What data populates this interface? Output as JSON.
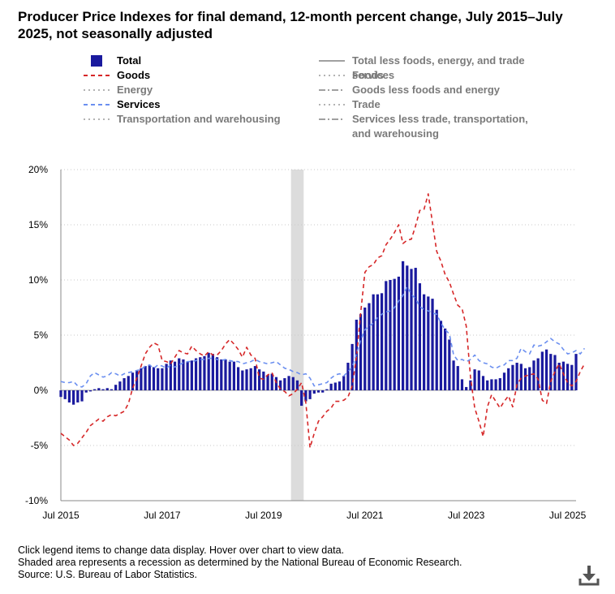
{
  "title": "Producer Price Indexes for final demand, 12-month percent change, July 2015–July 2025, not seasonally adjusted",
  "legend": [
    {
      "label": "Total",
      "style": "bar",
      "color": "#1a1a9e",
      "active": true
    },
    {
      "label": "Goods",
      "style": "dashed",
      "color": "#d62728",
      "active": true
    },
    {
      "label": "Energy",
      "style": "dotted",
      "color": "#9a9a9a",
      "active": false
    },
    {
      "label": "Services",
      "style": "dashed",
      "color": "#6b8ff0",
      "active": true
    },
    {
      "label": "Transportation and warehousing",
      "style": "dotted",
      "color": "#9a9a9a",
      "active": false
    },
    {
      "label": "Total less foods, energy, and trade services",
      "style": "solid",
      "color": "#808080",
      "active": false
    },
    {
      "label": "Foods",
      "style": "dotted",
      "color": "#9a9a9a",
      "active": false
    },
    {
      "label": "Goods less foods and energy",
      "style": "dashdot",
      "color": "#808080",
      "active": false
    },
    {
      "label": "Trade",
      "style": "dotted",
      "color": "#9a9a9a",
      "active": false
    },
    {
      "label": "Services less trade, transportation, and warehousing",
      "style": "dashdot",
      "color": "#808080",
      "active": false
    }
  ],
  "chart_data": {
    "type": "bar",
    "title": "Producer Price Indexes for final demand, 12-month percent change, July 2015–July 2025, not seasonally adjusted",
    "xlabel": "",
    "ylabel": "",
    "ylim": [
      -10,
      20
    ],
    "yticks": [
      -10,
      -5,
      0,
      5,
      10,
      15,
      20
    ],
    "ytick_labels": [
      "-10%",
      "-5%",
      "0%",
      "5%",
      "10%",
      "15%",
      "20%"
    ],
    "xtick_labels": [
      "Jul 2015",
      "Jul 2017",
      "Jul 2019",
      "Jul 2021",
      "Jul 2023",
      "Jul 2025"
    ],
    "xtick_index": [
      0,
      24,
      48,
      72,
      96,
      120
    ],
    "start": "Jul 2015",
    "end": "Jul 2025",
    "recession_months": [
      "Feb 2020",
      "Apr 2020"
    ],
    "grid": true,
    "series": [
      {
        "name": "Total",
        "kind": "bar",
        "color": "#1a1a9e",
        "values": [
          -0.6,
          -0.8,
          -1.1,
          -1.3,
          -1.1,
          -1.0,
          -0.2,
          -0.1,
          0.1,
          0.2,
          0.1,
          0.2,
          0.1,
          0.5,
          0.8,
          1.1,
          1.3,
          1.6,
          1.8,
          2.0,
          2.2,
          2.3,
          2.1,
          2.0,
          2.0,
          2.4,
          2.7,
          2.6,
          2.9,
          2.8,
          2.6,
          2.7,
          2.9,
          3.0,
          3.1,
          3.4,
          3.3,
          3.0,
          2.8,
          2.8,
          2.6,
          2.6,
          2.1,
          1.8,
          1.9,
          2.0,
          2.2,
          1.9,
          1.7,
          1.4,
          1.5,
          1.2,
          0.9,
          1.1,
          1.3,
          1.2,
          0.9,
          -1.4,
          -1.0,
          -0.8,
          -0.3,
          -0.2,
          -0.2,
          0.1,
          0.6,
          0.7,
          0.8,
          1.3,
          2.5,
          4.2,
          6.4,
          6.9,
          7.5,
          7.9,
          8.7,
          8.7,
          8.8,
          9.9,
          10.0,
          10.1,
          10.3,
          11.7,
          11.3,
          11.0,
          11.1,
          9.7,
          8.7,
          8.5,
          8.3,
          7.3,
          6.3,
          5.6,
          4.6,
          2.7,
          2.2,
          1.0,
          0.3,
          0.9,
          1.9,
          1.8,
          1.3,
          0.9,
          1.0,
          1.0,
          1.1,
          1.6,
          2.0,
          2.3,
          2.5,
          2.4,
          2.0,
          2.1,
          2.7,
          2.9,
          3.5,
          3.7,
          3.3,
          3.2,
          2.5,
          2.6,
          2.4,
          2.3,
          3.3
        ]
      },
      {
        "name": "Goods",
        "kind": "line",
        "dash": "5,4",
        "color": "#d62728",
        "values": [
          -3.9,
          -4.2,
          -4.5,
          -5.0,
          -4.8,
          -4.3,
          -3.8,
          -3.2,
          -2.9,
          -2.6,
          -2.8,
          -2.4,
          -2.2,
          -2.3,
          -2.1,
          -1.9,
          -1.2,
          0.2,
          1.1,
          2.2,
          3.3,
          3.9,
          4.3,
          4.1,
          2.7,
          2.6,
          2.4,
          3.0,
          3.6,
          3.4,
          3.3,
          4.0,
          3.6,
          3.3,
          3.1,
          3.5,
          3.2,
          3.2,
          3.6,
          4.2,
          4.6,
          4.2,
          3.7,
          3.0,
          3.9,
          3.2,
          2.9,
          1.1,
          1.0,
          1.4,
          1.6,
          0.7,
          0.1,
          -0.1,
          -0.5,
          -0.3,
          0.1,
          0.7,
          -1.1,
          -5.2,
          -3.9,
          -2.8,
          -2.4,
          -1.9,
          -1.6,
          -1.0,
          -1.0,
          -0.9,
          -0.6,
          0.4,
          3.0,
          7.0,
          10.7,
          11.2,
          11.4,
          12.0,
          12.2,
          13.2,
          13.7,
          14.3,
          15.0,
          13.3,
          13.6,
          13.7,
          14.9,
          16.3,
          16.4,
          17.8,
          15.2,
          12.6,
          11.7,
          10.5,
          9.8,
          8.7,
          7.7,
          7.4,
          5.8,
          1.2,
          -1.6,
          -2.8,
          -4.2,
          -1.5,
          -0.4,
          -1.0,
          -1.6,
          -1.0,
          -0.5,
          -1.5,
          0.5,
          1.1,
          1.3,
          1.4,
          1.5,
          1.0,
          -0.9,
          -1.2,
          0.8,
          1.7,
          2.4,
          1.5,
          0.7,
          0.4,
          0.8,
          1.7,
          2.4
        ]
      },
      {
        "name": "Services",
        "kind": "line",
        "dash": "5,4",
        "color": "#6b8ff0",
        "values": [
          0.8,
          0.7,
          0.7,
          0.8,
          0.4,
          0.3,
          0.6,
          1.3,
          1.6,
          1.4,
          1.2,
          1.3,
          1.6,
          1.5,
          1.3,
          1.5,
          1.6,
          1.7,
          1.8,
          1.9,
          2.2,
          2.3,
          2.0,
          2.3,
          2.2,
          2.0,
          2.3,
          2.1,
          2.3,
          2.5,
          2.6,
          2.6,
          2.7,
          2.8,
          2.8,
          2.9,
          2.9,
          2.8,
          2.7,
          2.8,
          2.7,
          2.6,
          2.6,
          2.4,
          2.5,
          2.6,
          2.8,
          2.6,
          2.5,
          2.4,
          2.5,
          2.6,
          2.3,
          2.0,
          1.9,
          1.7,
          1.6,
          1.4,
          1.5,
          1.1,
          0.4,
          0.5,
          0.6,
          0.7,
          1.1,
          1.4,
          1.5,
          1.3,
          1.7,
          2.1,
          3.3,
          4.5,
          5.5,
          5.8,
          6.1,
          6.6,
          6.9,
          7.1,
          7.2,
          7.5,
          8.1,
          8.6,
          9.4,
          8.7,
          8.3,
          7.6,
          7.3,
          7.2,
          7.0,
          6.9,
          6.1,
          5.5,
          5.1,
          3.2,
          2.7,
          2.8,
          2.6,
          2.8,
          3.2,
          2.7,
          2.5,
          2.4,
          2.1,
          2.0,
          2.2,
          2.3,
          2.7,
          2.7,
          2.9,
          3.8,
          3.5,
          3.3,
          4.1,
          4.0,
          4.1,
          4.4,
          4.7,
          4.4,
          4.2,
          3.7,
          3.3,
          3.4,
          3.6,
          3.3,
          3.8
        ]
      }
    ]
  },
  "notes": [
    "Click legend items to change data display. Hover over chart to view data.",
    "Shaded area represents a recession as determined by the National Bureau of Economic Research.",
    "Source: U.S. Bureau of Labor Statistics."
  ],
  "download_icon": "download-icon"
}
